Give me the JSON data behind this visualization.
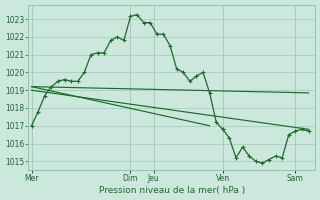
{
  "background_color": "#cce8dc",
  "grid_color": "#aacfbe",
  "line_color": "#1a6b2a",
  "xlabel": "Pression niveau de la mer( hPa )",
  "x_tick_labels": [
    "Mer",
    "Dim",
    "Jeu",
    "Ven",
    "Sam"
  ],
  "ylim": [
    1014.5,
    1023.8
  ],
  "yticks": [
    1015,
    1016,
    1017,
    1018,
    1019,
    1020,
    1021,
    1022,
    1023
  ],
  "main_x": [
    0,
    1,
    2,
    3,
    4,
    5,
    6,
    7,
    8,
    9,
    10,
    11,
    12,
    13,
    14,
    15,
    16,
    17,
    18,
    19,
    20,
    21,
    22,
    23,
    24,
    25,
    26,
    27,
    28,
    29
  ],
  "main_y": [
    1017.0,
    1017.8,
    1018.7,
    1019.2,
    1019.5,
    1019.6,
    1019.5,
    1019.5,
    1020.0,
    1021.0,
    1021.1,
    1021.1,
    1021.8,
    1022.0,
    1021.8,
    1023.15,
    1023.25,
    1022.8,
    1022.8,
    1022.15,
    1022.15,
    1021.5,
    1020.2,
    1020.0,
    1019.5,
    1019.8,
    1020.0,
    1018.85,
    1017.2,
    1016.8
  ],
  "fall_x": [
    29,
    30,
    31,
    32,
    33,
    34,
    35,
    36,
    37,
    38,
    39,
    40,
    41,
    42
  ],
  "fall_y": [
    1016.8,
    1016.3,
    1015.2,
    1015.8,
    1015.3,
    1015.0,
    1014.9,
    1015.1,
    1015.3,
    1015.2,
    1016.5,
    1016.7,
    1016.8,
    1016.7
  ],
  "trend1_x": [
    0,
    42
  ],
  "trend1_y": [
    1019.2,
    1018.85
  ],
  "trend2_x": [
    0,
    42
  ],
  "trend2_y": [
    1019.0,
    1016.8
  ],
  "trend3_x": [
    0,
    27
  ],
  "trend3_y": [
    1019.2,
    1017.0
  ],
  "xlim": [
    -0.5,
    43
  ]
}
